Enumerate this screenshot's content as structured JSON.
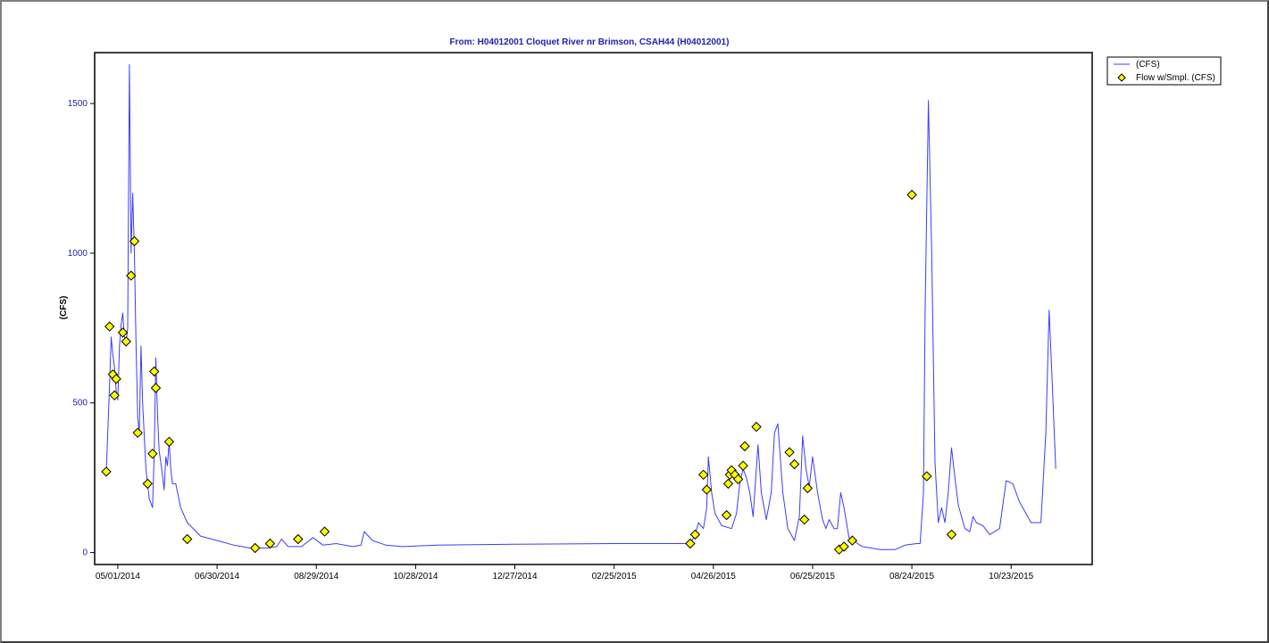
{
  "chart_data": {
    "type": "line",
    "title": "From: H04012001  Cloquet River nr Brimson, CSAH44 (H04012001)",
    "xlabel": "",
    "ylabel": "(CFS)",
    "x_type": "date",
    "xlim": [
      "2014-04-17",
      "2015-12-11"
    ],
    "ylim": [
      -40,
      1670
    ],
    "yticks": [
      0,
      500,
      1000,
      1500
    ],
    "xticks": [
      "2014-05-01",
      "2014-06-30",
      "2014-08-29",
      "2014-10-28",
      "2014-12-27",
      "2015-02-25",
      "2015-04-26",
      "2015-06-25",
      "2015-08-24",
      "2015-10-23"
    ],
    "xtick_labels": [
      "05/01/2014",
      "06/30/2014",
      "08/29/2014",
      "10/28/2014",
      "12/27/2014",
      "02/25/2015",
      "04/26/2015",
      "06/25/2015",
      "08/24/2015",
      "10/23/2015"
    ],
    "grid": false,
    "legend_position": "top-right",
    "colors": {
      "line": "#3c3cff",
      "marker_fill": "#ffff00",
      "marker_stroke": "#000000",
      "text_blue": "#1e1eb4"
    },
    "series": [
      {
        "name": "(CFS)",
        "kind": "line",
        "points": [
          [
            "2014-04-24",
            270
          ],
          [
            "2014-04-26",
            560
          ],
          [
            "2014-04-27",
            720
          ],
          [
            "2014-04-28",
            660
          ],
          [
            "2014-04-29",
            620
          ],
          [
            "2014-04-30",
            540
          ],
          [
            "2014-05-01",
            510
          ],
          [
            "2014-05-02",
            690
          ],
          [
            "2014-05-03",
            760
          ],
          [
            "2014-05-04",
            800
          ],
          [
            "2014-05-05",
            720
          ],
          [
            "2014-05-06",
            700
          ],
          [
            "2014-05-07",
            750
          ],
          [
            "2014-05-08",
            1630
          ],
          [
            "2014-05-09",
            1000
          ],
          [
            "2014-05-10",
            1200
          ],
          [
            "2014-05-11",
            1000
          ],
          [
            "2014-05-12",
            700
          ],
          [
            "2014-05-13",
            450
          ],
          [
            "2014-05-14",
            400
          ],
          [
            "2014-05-15",
            690
          ],
          [
            "2014-05-16",
            500
          ],
          [
            "2014-05-18",
            280
          ],
          [
            "2014-05-20",
            180
          ],
          [
            "2014-05-22",
            150
          ],
          [
            "2014-05-23",
            330
          ],
          [
            "2014-05-24",
            650
          ],
          [
            "2014-05-25",
            460
          ],
          [
            "2014-05-26",
            340
          ],
          [
            "2014-05-27",
            300
          ],
          [
            "2014-05-28",
            260
          ],
          [
            "2014-05-29",
            210
          ],
          [
            "2014-05-30",
            320
          ],
          [
            "2014-05-31",
            290
          ],
          [
            "2014-06-01",
            370
          ],
          [
            "2014-06-02",
            280
          ],
          [
            "2014-06-03",
            230
          ],
          [
            "2014-06-05",
            230
          ],
          [
            "2014-06-08",
            150
          ],
          [
            "2014-06-12",
            100
          ],
          [
            "2014-06-20",
            55
          ],
          [
            "2014-06-30",
            40
          ],
          [
            "2014-07-10",
            25
          ],
          [
            "2014-07-20",
            15
          ],
          [
            "2014-07-30",
            15
          ],
          [
            "2014-08-05",
            20
          ],
          [
            "2014-08-08",
            45
          ],
          [
            "2014-08-12",
            20
          ],
          [
            "2014-08-20",
            20
          ],
          [
            "2014-08-27",
            50
          ],
          [
            "2014-09-02",
            25
          ],
          [
            "2014-09-10",
            30
          ],
          [
            "2014-09-20",
            20
          ],
          [
            "2014-09-25",
            25
          ],
          [
            "2014-09-27",
            70
          ],
          [
            "2014-10-02",
            40
          ],
          [
            "2014-10-10",
            25
          ],
          [
            "2014-10-20",
            20
          ],
          [
            "2014-11-10",
            25
          ],
          [
            "2014-12-27",
            28
          ],
          [
            "2015-02-25",
            30
          ],
          [
            "2015-04-12",
            30
          ],
          [
            "2015-04-15",
            60
          ],
          [
            "2015-04-17",
            100
          ],
          [
            "2015-04-20",
            80
          ],
          [
            "2015-04-22",
            150
          ],
          [
            "2015-04-23",
            320
          ],
          [
            "2015-04-25",
            200
          ],
          [
            "2015-04-27",
            130
          ],
          [
            "2015-05-01",
            90
          ],
          [
            "2015-05-07",
            80
          ],
          [
            "2015-05-10",
            130
          ],
          [
            "2015-05-12",
            230
          ],
          [
            "2015-05-14",
            280
          ],
          [
            "2015-05-16",
            250
          ],
          [
            "2015-05-18",
            200
          ],
          [
            "2015-05-20",
            120
          ],
          [
            "2015-05-21",
            200
          ],
          [
            "2015-05-23",
            360
          ],
          [
            "2015-05-25",
            200
          ],
          [
            "2015-05-28",
            110
          ],
          [
            "2015-05-31",
            200
          ],
          [
            "2015-06-02",
            400
          ],
          [
            "2015-06-04",
            430
          ],
          [
            "2015-06-07",
            200
          ],
          [
            "2015-06-10",
            80
          ],
          [
            "2015-06-14",
            40
          ],
          [
            "2015-06-17",
            120
          ],
          [
            "2015-06-19",
            390
          ],
          [
            "2015-06-21",
            280
          ],
          [
            "2015-06-23",
            220
          ],
          [
            "2015-06-25",
            320
          ],
          [
            "2015-06-28",
            200
          ],
          [
            "2015-07-01",
            110
          ],
          [
            "2015-07-03",
            80
          ],
          [
            "2015-07-05",
            110
          ],
          [
            "2015-07-08",
            80
          ],
          [
            "2015-07-10",
            80
          ],
          [
            "2015-07-12",
            200
          ],
          [
            "2015-07-14",
            150
          ],
          [
            "2015-07-17",
            50
          ],
          [
            "2015-07-25",
            20
          ],
          [
            "2015-08-05",
            10
          ],
          [
            "2015-08-14",
            10
          ],
          [
            "2015-08-20",
            25
          ],
          [
            "2015-08-27",
            30
          ],
          [
            "2015-08-29",
            30
          ],
          [
            "2015-08-31",
            200
          ],
          [
            "2015-09-01",
            800
          ],
          [
            "2015-09-03",
            1510
          ],
          [
            "2015-09-05",
            1000
          ],
          [
            "2015-09-07",
            300
          ],
          [
            "2015-09-09",
            100
          ],
          [
            "2015-09-11",
            150
          ],
          [
            "2015-09-13",
            100
          ],
          [
            "2015-09-15",
            200
          ],
          [
            "2015-09-17",
            350
          ],
          [
            "2015-09-19",
            250
          ],
          [
            "2015-09-21",
            160
          ],
          [
            "2015-09-25",
            80
          ],
          [
            "2015-09-28",
            70
          ],
          [
            "2015-09-30",
            120
          ],
          [
            "2015-10-02",
            100
          ],
          [
            "2015-10-06",
            90
          ],
          [
            "2015-10-10",
            60
          ],
          [
            "2015-10-16",
            80
          ],
          [
            "2015-10-20",
            240
          ],
          [
            "2015-10-24",
            230
          ],
          [
            "2015-10-28",
            170
          ],
          [
            "2015-11-04",
            100
          ],
          [
            "2015-11-10",
            100
          ],
          [
            "2015-11-13",
            400
          ],
          [
            "2015-11-15",
            810
          ],
          [
            "2015-11-17",
            550
          ],
          [
            "2015-11-19",
            280
          ]
        ]
      },
      {
        "name": "Flow w/Smpl. (CFS)",
        "kind": "marker",
        "points": [
          [
            "2014-04-24",
            270
          ],
          [
            "2014-04-26",
            755
          ],
          [
            "2014-04-28",
            595
          ],
          [
            "2014-04-29",
            525
          ],
          [
            "2014-04-30",
            580
          ],
          [
            "2014-05-04",
            735
          ],
          [
            "2014-05-06",
            705
          ],
          [
            "2014-05-09",
            925
          ],
          [
            "2014-05-11",
            1040
          ],
          [
            "2014-05-13",
            400
          ],
          [
            "2014-05-19",
            230
          ],
          [
            "2014-05-22",
            330
          ],
          [
            "2014-05-23",
            605
          ],
          [
            "2014-05-24",
            550
          ],
          [
            "2014-06-01",
            370
          ],
          [
            "2014-06-12",
            45
          ],
          [
            "2014-07-23",
            15
          ],
          [
            "2014-08-01",
            30
          ],
          [
            "2014-08-18",
            45
          ],
          [
            "2014-09-03",
            70
          ],
          [
            "2015-04-12",
            30
          ],
          [
            "2015-04-15",
            60
          ],
          [
            "2015-04-20",
            260
          ],
          [
            "2015-04-22",
            210
          ],
          [
            "2015-05-04",
            125
          ],
          [
            "2015-05-05",
            230
          ],
          [
            "2015-05-06",
            260
          ],
          [
            "2015-05-07",
            275
          ],
          [
            "2015-05-09",
            260
          ],
          [
            "2015-05-11",
            245
          ],
          [
            "2015-05-14",
            290
          ],
          [
            "2015-05-15",
            355
          ],
          [
            "2015-05-22",
            420
          ],
          [
            "2015-06-11",
            335
          ],
          [
            "2015-06-14",
            295
          ],
          [
            "2015-06-20",
            110
          ],
          [
            "2015-06-22",
            215
          ],
          [
            "2015-07-11",
            10
          ],
          [
            "2015-07-14",
            20
          ],
          [
            "2015-07-19",
            40
          ],
          [
            "2015-08-24",
            1195
          ],
          [
            "2015-09-02",
            255
          ],
          [
            "2015-09-17",
            60
          ]
        ]
      }
    ]
  }
}
